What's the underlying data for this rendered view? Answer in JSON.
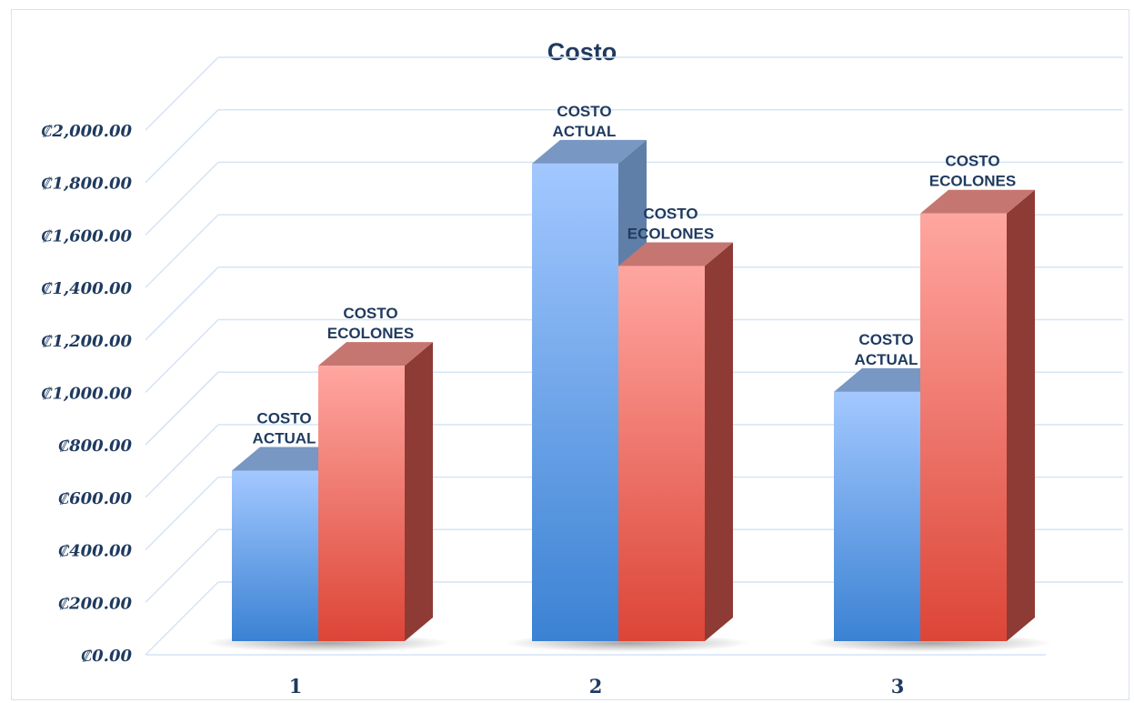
{
  "chart_data": {
    "type": "bar",
    "title": "Costo",
    "xlabel": "",
    "ylabel": "",
    "categories": [
      "1",
      "2",
      "3"
    ],
    "ylim": [
      0,
      2000
    ],
    "yticks": [
      "₡0.00",
      "₡200.00",
      "₡400.00",
      "₡600.00",
      "₡800.00",
      "₡1,000.00",
      "₡1,200.00",
      "₡1,400.00",
      "₡1,600.00",
      "₡1,800.00",
      "₡2,000.00"
    ],
    "grid": true,
    "legend": "none",
    "series": [
      {
        "label_lines": [
          "COSTO",
          "ACTUAL"
        ],
        "color_top": "#a3c8ff",
        "color_bottom": "#3b82d3",
        "color_side": "#5f7fa8",
        "color_cap": "#7897c2",
        "values": [
          650,
          1820,
          950
        ]
      },
      {
        "label_lines": [
          "COSTO",
          "ECOLONES"
        ],
        "color_top": "#ffa6a0",
        "color_bottom": "#dc4537",
        "color_side": "#8e3b35",
        "color_cap": "#c67670",
        "values": [
          1050,
          1430,
          1630
        ]
      }
    ]
  }
}
